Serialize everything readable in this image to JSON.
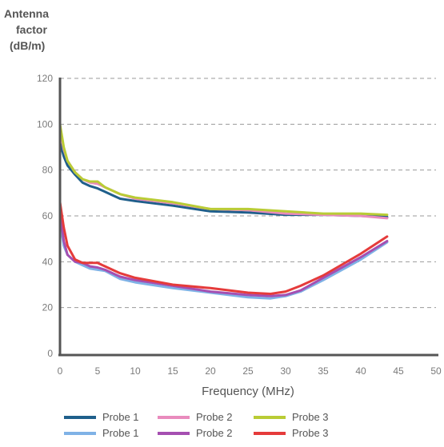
{
  "chart_data": {
    "type": "line",
    "ylabel_lines": [
      "Antenna",
      "factor",
      "(dB/m)"
    ],
    "xlabel": "Frequency (MHz)",
    "xlim": [
      0,
      50
    ],
    "ylim": [
      0,
      120
    ],
    "x_ticks": [
      0,
      5,
      10,
      15,
      20,
      25,
      30,
      35,
      40,
      45,
      50
    ],
    "y_ticks": [
      0,
      20,
      40,
      60,
      80,
      100,
      120
    ],
    "grid": "horizontal dashed",
    "legend_position": "bottom",
    "series": [
      {
        "name": "Probe 1",
        "color": "#1f5f8b",
        "points": [
          [
            0,
            92
          ],
          [
            0.5,
            86
          ],
          [
            1,
            82
          ],
          [
            2,
            78
          ],
          [
            3,
            74.5
          ],
          [
            4,
            73
          ],
          [
            5,
            72
          ],
          [
            6,
            70.5
          ],
          [
            7,
            69
          ],
          [
            8,
            67.5
          ],
          [
            10,
            66.5
          ],
          [
            15,
            64.5
          ],
          [
            20,
            62
          ],
          [
            25,
            61.5
          ],
          [
            30,
            60.5
          ],
          [
            35,
            60.5
          ],
          [
            40,
            60
          ],
          [
            43.5,
            59.5
          ]
        ]
      },
      {
        "name": "Probe 2",
        "color": "#e98bbd",
        "points": [
          [
            0,
            98
          ],
          [
            0.5,
            89
          ],
          [
            1,
            84
          ],
          [
            2,
            79
          ],
          [
            3,
            76
          ],
          [
            4,
            74.5
          ],
          [
            5,
            74
          ],
          [
            6,
            72.5
          ],
          [
            8,
            69.5
          ],
          [
            10,
            67.5
          ],
          [
            15,
            65.5
          ],
          [
            20,
            63
          ],
          [
            25,
            62.5
          ],
          [
            30,
            61
          ],
          [
            35,
            60.5
          ],
          [
            40,
            60
          ],
          [
            43.5,
            59
          ]
        ]
      },
      {
        "name": "Probe 3",
        "color": "#b9cc35",
        "points": [
          [
            0,
            100
          ],
          [
            0.5,
            90
          ],
          [
            1,
            84
          ],
          [
            2,
            79
          ],
          [
            3,
            76
          ],
          [
            4,
            75
          ],
          [
            5,
            75
          ],
          [
            6,
            72.5
          ],
          [
            8,
            69.5
          ],
          [
            10,
            68
          ],
          [
            15,
            66
          ],
          [
            20,
            63
          ],
          [
            25,
            63
          ],
          [
            30,
            62
          ],
          [
            35,
            61
          ],
          [
            40,
            61
          ],
          [
            43.5,
            60.5
          ]
        ]
      },
      {
        "name": "Probe 1",
        "color": "#7fb2e6",
        "points": [
          [
            0,
            58
          ],
          [
            0.5,
            47
          ],
          [
            1,
            43
          ],
          [
            2,
            40
          ],
          [
            3,
            38.5
          ],
          [
            4,
            37
          ],
          [
            5,
            36.5
          ],
          [
            6,
            36
          ],
          [
            8,
            32.5
          ],
          [
            10,
            31
          ],
          [
            15,
            28.5
          ],
          [
            20,
            26.5
          ],
          [
            25,
            24.5
          ],
          [
            28,
            24
          ],
          [
            30,
            25
          ],
          [
            32,
            27
          ],
          [
            35,
            32
          ],
          [
            40,
            41
          ],
          [
            43.5,
            48.5
          ]
        ]
      },
      {
        "name": "Probe 2",
        "color": "#a54fb1",
        "points": [
          [
            0,
            62
          ],
          [
            0.5,
            49
          ],
          [
            1,
            43
          ],
          [
            2,
            40
          ],
          [
            3,
            39.5
          ],
          [
            4,
            38
          ],
          [
            5,
            37.5
          ],
          [
            6,
            36.5
          ],
          [
            8,
            33.5
          ],
          [
            10,
            32
          ],
          [
            15,
            29.5
          ],
          [
            20,
            27
          ],
          [
            25,
            25.5
          ],
          [
            28,
            25
          ],
          [
            30,
            25.5
          ],
          [
            32,
            27.5
          ],
          [
            35,
            33
          ],
          [
            40,
            42
          ],
          [
            43.5,
            49
          ]
        ]
      },
      {
        "name": "Probe 3",
        "color": "#e53b3b",
        "points": [
          [
            0,
            66
          ],
          [
            0.5,
            55
          ],
          [
            1,
            47
          ],
          [
            2,
            41
          ],
          [
            3,
            39.5
          ],
          [
            4,
            39.5
          ],
          [
            5,
            39.5
          ],
          [
            6,
            38
          ],
          [
            8,
            35
          ],
          [
            10,
            33
          ],
          [
            15,
            30
          ],
          [
            20,
            28.5
          ],
          [
            25,
            26.5
          ],
          [
            28,
            26
          ],
          [
            30,
            27
          ],
          [
            32,
            29.5
          ],
          [
            35,
            34
          ],
          [
            40,
            43.5
          ],
          [
            43.5,
            51
          ]
        ]
      }
    ]
  }
}
